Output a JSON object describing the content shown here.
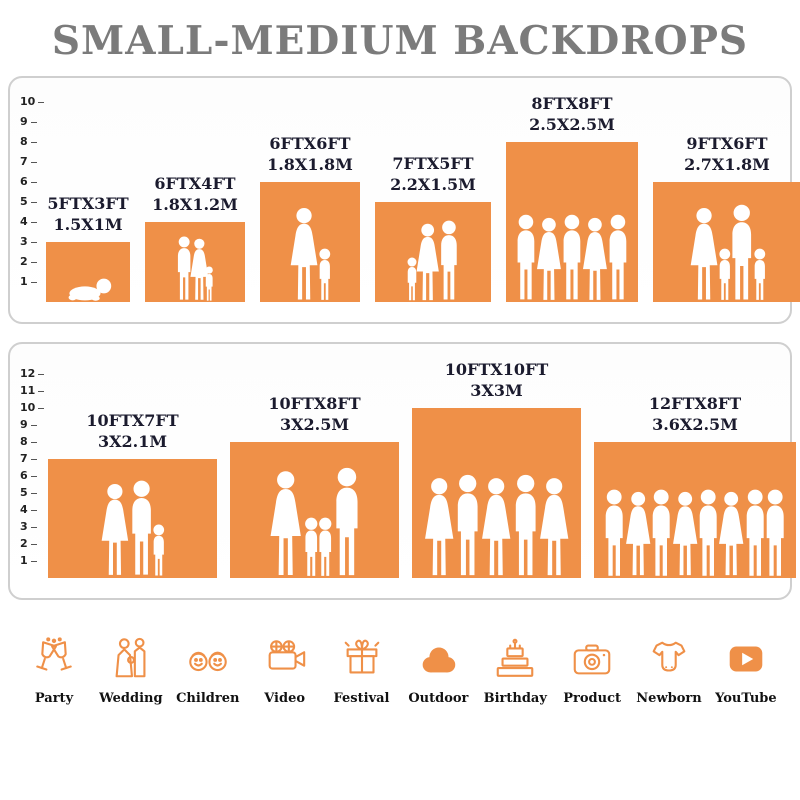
{
  "title": "SMALL-MEDIUM BACKDROPS",
  "colors": {
    "accent": "#EF9048",
    "title": "#7b7b7b",
    "label": "#1b1b2e",
    "panel_border": "#cfcfcf",
    "silhouette": "#ffffff"
  },
  "chart_data": [
    {
      "type": "bar",
      "title": "",
      "xlabel": "",
      "ylabel": "",
      "ylim": [
        0,
        10
      ],
      "y_ticks": [
        1,
        2,
        3,
        4,
        5,
        6,
        7,
        8,
        9,
        10
      ],
      "categories": [
        "5FTX3FT",
        "6FTX4FT",
        "6FTX6FT",
        "7FTX5FT",
        "8FTX8FT",
        "9FTX6FT"
      ],
      "categories_metric": [
        "1.5X1M",
        "1.8X1.2M",
        "1.8X1.8M",
        "2.2X1.5M",
        "2.5X2.5M",
        "2.7X1.8M"
      ],
      "values": [
        3,
        4,
        6,
        5,
        8,
        6
      ],
      "bar_widths_ft": [
        5,
        6,
        6,
        7,
        8,
        9
      ],
      "figures": [
        [
          "baby"
        ],
        [
          "man",
          "woman",
          "child"
        ],
        [
          "woman",
          "child"
        ],
        [
          "child",
          "woman",
          "man"
        ],
        [
          "man",
          "woman",
          "man",
          "woman",
          "man"
        ],
        [
          "woman",
          "child",
          "man",
          "child"
        ]
      ]
    },
    {
      "type": "bar",
      "title": "",
      "xlabel": "",
      "ylabel": "",
      "ylim": [
        0,
        12
      ],
      "y_ticks": [
        1,
        2,
        3,
        4,
        5,
        6,
        7,
        8,
        9,
        10,
        11,
        12
      ],
      "categories": [
        "10FTX7FT",
        "10FTX8FT",
        "10FTX10FT",
        "12FTX8FT"
      ],
      "categories_metric": [
        "3X2.1M",
        "3X2.5M",
        "3X3M",
        "3.6X2.5M"
      ],
      "values": [
        7,
        8,
        10,
        8
      ],
      "bar_widths_ft": [
        10,
        10,
        10,
        12
      ],
      "figures": [
        [
          "woman",
          "man",
          "child"
        ],
        [
          "woman",
          "child",
          "child",
          "man"
        ],
        [
          "woman",
          "man",
          "woman",
          "man",
          "woman"
        ],
        [
          "man",
          "woman",
          "man",
          "woman",
          "man",
          "woman",
          "man",
          "man"
        ]
      ]
    }
  ],
  "legend": [
    {
      "icon": "party-icon",
      "label": "Party"
    },
    {
      "icon": "wedding-icon",
      "label": "Wedding"
    },
    {
      "icon": "children-icon",
      "label": "Children"
    },
    {
      "icon": "video-icon",
      "label": "Video"
    },
    {
      "icon": "festival-icon",
      "label": "Festival"
    },
    {
      "icon": "outdoor-icon",
      "label": "Outdoor"
    },
    {
      "icon": "birthday-icon",
      "label": "Birthday"
    },
    {
      "icon": "product-icon",
      "label": "Product"
    },
    {
      "icon": "newborn-icon",
      "label": "Newborn"
    },
    {
      "icon": "youtube-icon",
      "label": "YouTube"
    }
  ]
}
